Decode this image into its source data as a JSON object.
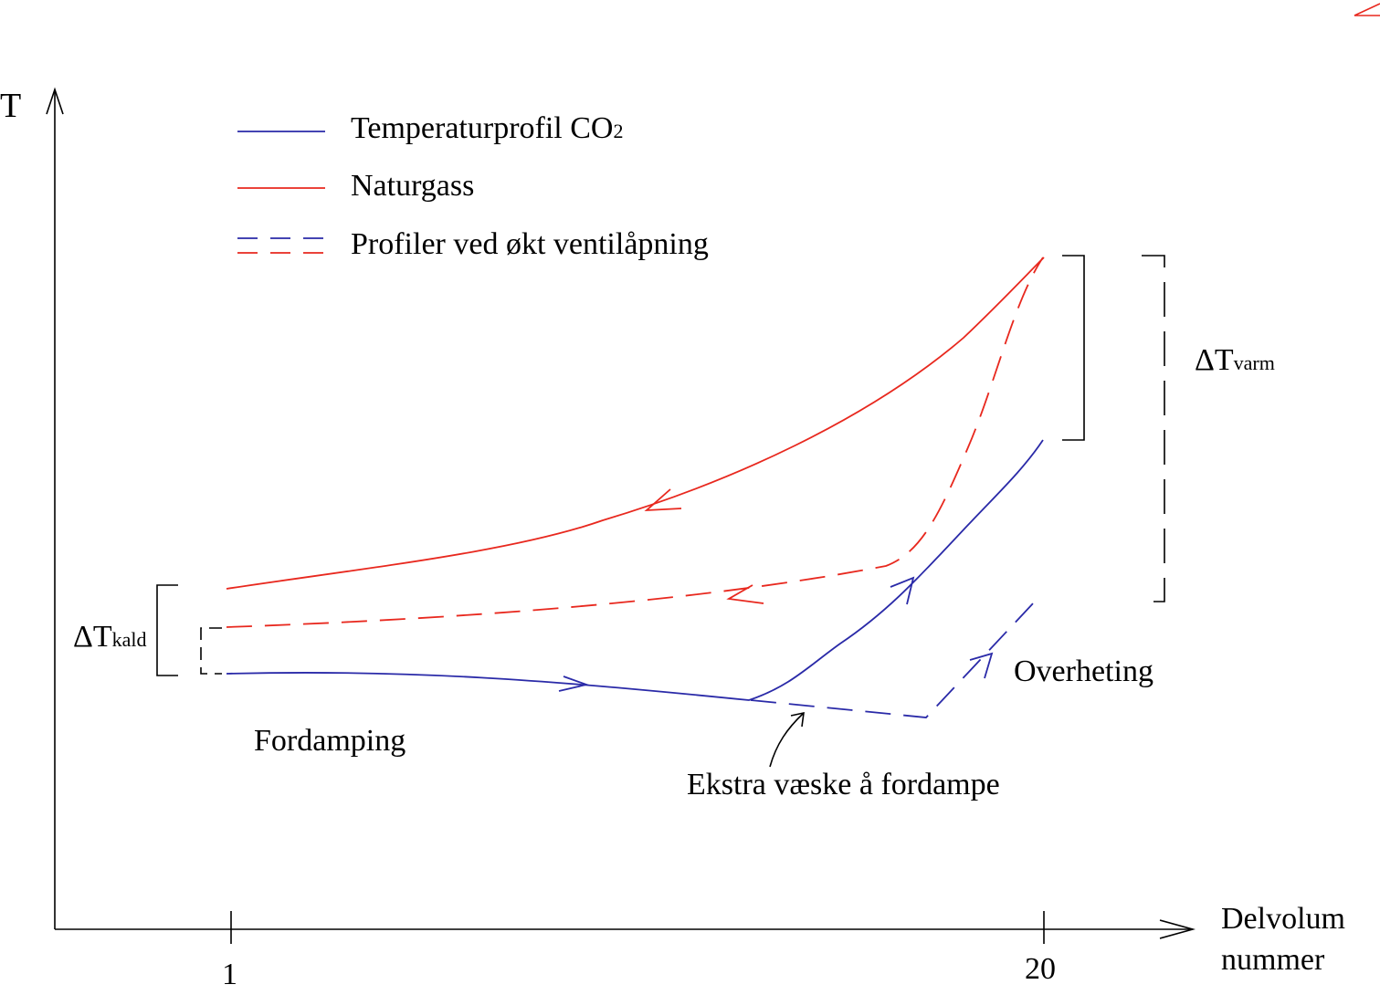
{
  "axes": {
    "y_label": "T",
    "x_label_line1": "Delvolum",
    "x_label_line2": "nummer",
    "x_tick_first": "1",
    "x_tick_last": "20"
  },
  "legend": {
    "co2": "Temperaturprofil CO",
    "co2_subscript": "2",
    "naturgas": "Naturgass",
    "dashed": "Profiler ved økt ventilåpning"
  },
  "annotations": {
    "delta_symbol": "Δ",
    "dt_kald_main": "T",
    "dt_kald_sub": "kald",
    "dt_varm_main": "T",
    "dt_varm_sub": "varm",
    "fordamping": "Fordamping",
    "overheting": "Overheting",
    "ekstra": "Ekstra væske å fordampe"
  },
  "colors": {
    "co2": "#2a2aa8",
    "naturgas": "#e8281e",
    "axis": "#000000"
  }
}
